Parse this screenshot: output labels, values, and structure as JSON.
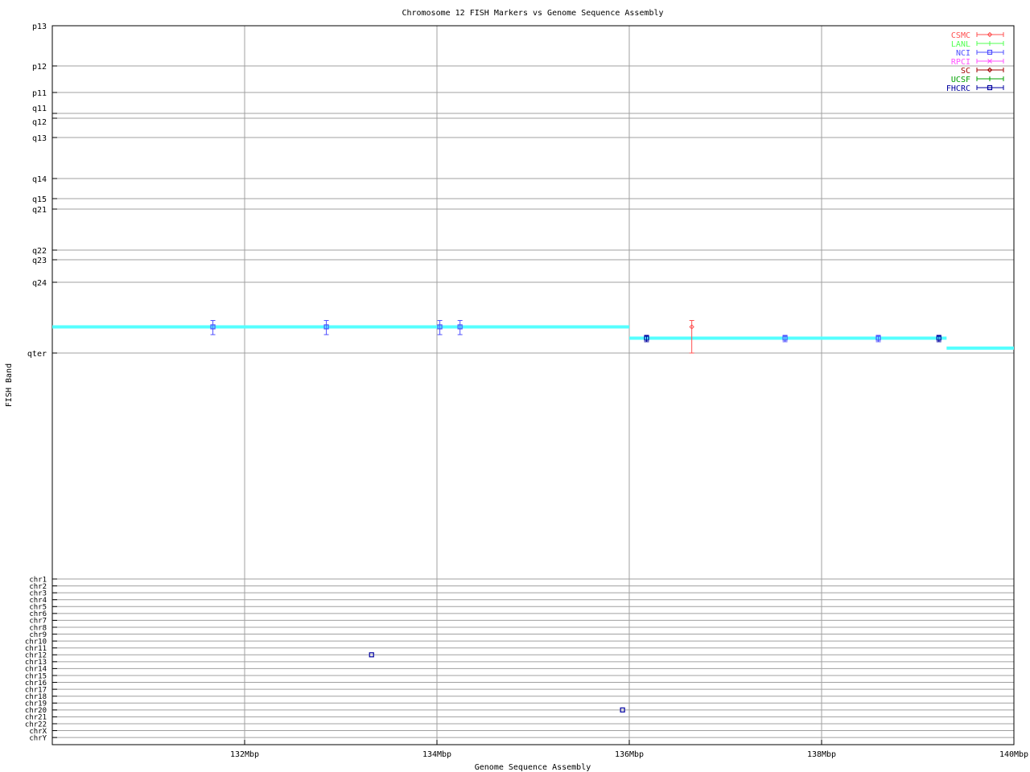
{
  "chart_data": {
    "type": "scatter",
    "title": "Chromosome 12 FISH Markers vs Genome Sequence Assembly",
    "xlabel": "Genome Sequence Assembly",
    "ylabel": "FISH Band",
    "xlim": [
      130,
      140
    ],
    "x_unit": "Mbp",
    "x_ticks": [
      "132Mbp",
      "134Mbp",
      "136Mbp",
      "138Mbp",
      "140Mbp"
    ],
    "x_tick_values": [
      132,
      134,
      136,
      138,
      140
    ],
    "grid": true,
    "legend_placement": "top-right",
    "band_ticks": [
      "p13",
      "p12",
      "p11",
      "q11",
      "q12",
      "q13",
      "q14",
      "q15",
      "q21",
      "q22",
      "q23",
      "q24",
      "qter"
    ],
    "chr_ticks": [
      "chr1",
      "chr2",
      "chr3",
      "chr4",
      "chr5",
      "chr6",
      "chr7",
      "chr8",
      "chr9",
      "chr10",
      "chr11",
      "chr12",
      "chr13",
      "chr14",
      "chr15",
      "chr16",
      "chr17",
      "chr18",
      "chr19",
      "chr20",
      "chr21",
      "chr22",
      "chrX",
      "chrY"
    ],
    "legend": [
      {
        "name": "CSMC",
        "color": "#ff5050",
        "marker": "diamond"
      },
      {
        "name": "LANL",
        "color": "#50ff50",
        "marker": "tick"
      },
      {
        "name": "NCI",
        "color": "#5050ff",
        "marker": "square"
      },
      {
        "name": "RPCI",
        "color": "#ff50ff",
        "marker": "x"
      },
      {
        "name": "SC",
        "color": "#a00000",
        "marker": "diamond"
      },
      {
        "name": "UCSF",
        "color": "#00a000",
        "marker": "tick"
      },
      {
        "name": "FHCRC",
        "color": "#0000a0",
        "marker": "square"
      }
    ],
    "assembly_line": {
      "color": "#55ffff",
      "segments": [
        {
          "x": [
            130.0,
            136.0
          ],
          "band": "q24-qter",
          "frac": 0.63
        },
        {
          "x": [
            136.0,
            139.3
          ],
          "band": "q24-qter",
          "frac": 0.79
        },
        {
          "x": [
            139.3,
            140.0
          ],
          "band": "q24-qter",
          "frac": 0.93
        }
      ]
    },
    "markers": [
      {
        "source": "NCI",
        "x": 131.67,
        "band": "q24-qter",
        "frac": 0.63,
        "err": [
          0.54,
          0.74
        ]
      },
      {
        "source": "NCI",
        "x": 132.85,
        "band": "q24-qter",
        "frac": 0.63,
        "err": [
          0.54,
          0.74
        ]
      },
      {
        "source": "NCI",
        "x": 134.03,
        "band": "q24-qter",
        "frac": 0.63,
        "err": [
          0.54,
          0.74
        ]
      },
      {
        "source": "NCI",
        "x": 134.24,
        "band": "q24-qter",
        "frac": 0.63,
        "err": [
          0.54,
          0.74
        ]
      },
      {
        "source": "FHCRC",
        "x": 136.18,
        "band": "q24-qter",
        "frac": 0.79,
        "err": [
          0.75,
          0.84
        ]
      },
      {
        "source": "CSMC",
        "x": 136.65,
        "band": "q24-qter",
        "frac": 0.63,
        "err": [
          0.54,
          1.0
        ]
      },
      {
        "source": "NCI",
        "x": 137.62,
        "band": "q24-qter",
        "frac": 0.79,
        "err": [
          0.75,
          0.84
        ]
      },
      {
        "source": "NCI",
        "x": 138.59,
        "band": "q24-qter",
        "frac": 0.79,
        "err": [
          0.75,
          0.84
        ]
      },
      {
        "source": "FHCRC",
        "x": 139.22,
        "band": "q24-qter",
        "frac": 0.79,
        "err": [
          0.75,
          0.84
        ]
      }
    ],
    "chr_markers": [
      {
        "source": "FHCRC",
        "x": 133.32,
        "chr": "chr12"
      },
      {
        "source": "FHCRC",
        "x": 135.93,
        "chr": "chr20"
      }
    ]
  }
}
